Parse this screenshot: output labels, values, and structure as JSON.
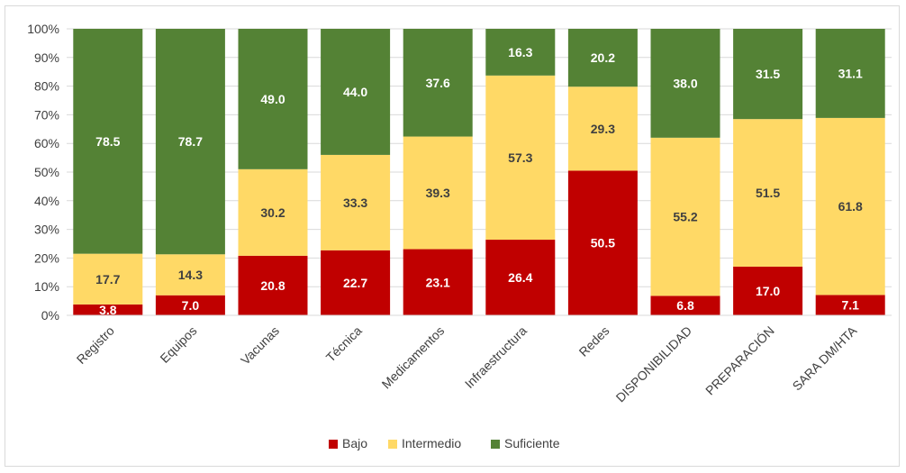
{
  "chart_data": {
    "type": "bar",
    "stacked": true,
    "percent_stacked": true,
    "categories": [
      "Registro",
      "Equipos",
      "Vacunas",
      "Técnica",
      "Medicamentos",
      "Infraestructura",
      "Redes",
      "DISPONIBILIDAD",
      "PREPARACIÓN",
      "SARA DM/HTA"
    ],
    "series": [
      {
        "name": "Bajo",
        "color": "#c00000",
        "label_color": "#ffffff",
        "values": [
          3.8,
          7.0,
          20.8,
          22.7,
          23.1,
          26.4,
          50.5,
          6.8,
          17.0,
          7.1
        ]
      },
      {
        "name": "Intermedio",
        "color": "#ffd966",
        "label_color": "#404040",
        "values": [
          17.7,
          14.3,
          30.2,
          33.3,
          39.3,
          57.3,
          29.3,
          55.2,
          51.5,
          61.8
        ]
      },
      {
        "name": "Suficiente",
        "color": "#548235",
        "label_color": "#ffffff",
        "values": [
          78.5,
          78.7,
          49.0,
          44.0,
          37.6,
          16.3,
          20.2,
          38.0,
          31.5,
          31.1
        ]
      }
    ],
    "value_labels": [
      [
        "3.8",
        "7.0",
        "20.8",
        "22.7",
        "23.1",
        "26.4",
        "50.5",
        "6.8",
        "17.0",
        "7.1"
      ],
      [
        "17.7",
        "14.3",
        "30.2",
        "33.3",
        "39.3",
        "57.3",
        "29.3",
        "55.2",
        "51.5",
        "61.8"
      ],
      [
        "78.5",
        "78.7",
        "49.0",
        "44.0",
        "37.6",
        "16.3",
        "20.2",
        "38.0",
        "31.5",
        "31.1"
      ]
    ],
    "y_ticks": [
      "0%",
      "10%",
      "20%",
      "30%",
      "40%",
      "50%",
      "60%",
      "70%",
      "80%",
      "90%",
      "100%"
    ],
    "ylim": [
      0,
      100
    ],
    "grid": true,
    "legend_position": "bottom"
  }
}
